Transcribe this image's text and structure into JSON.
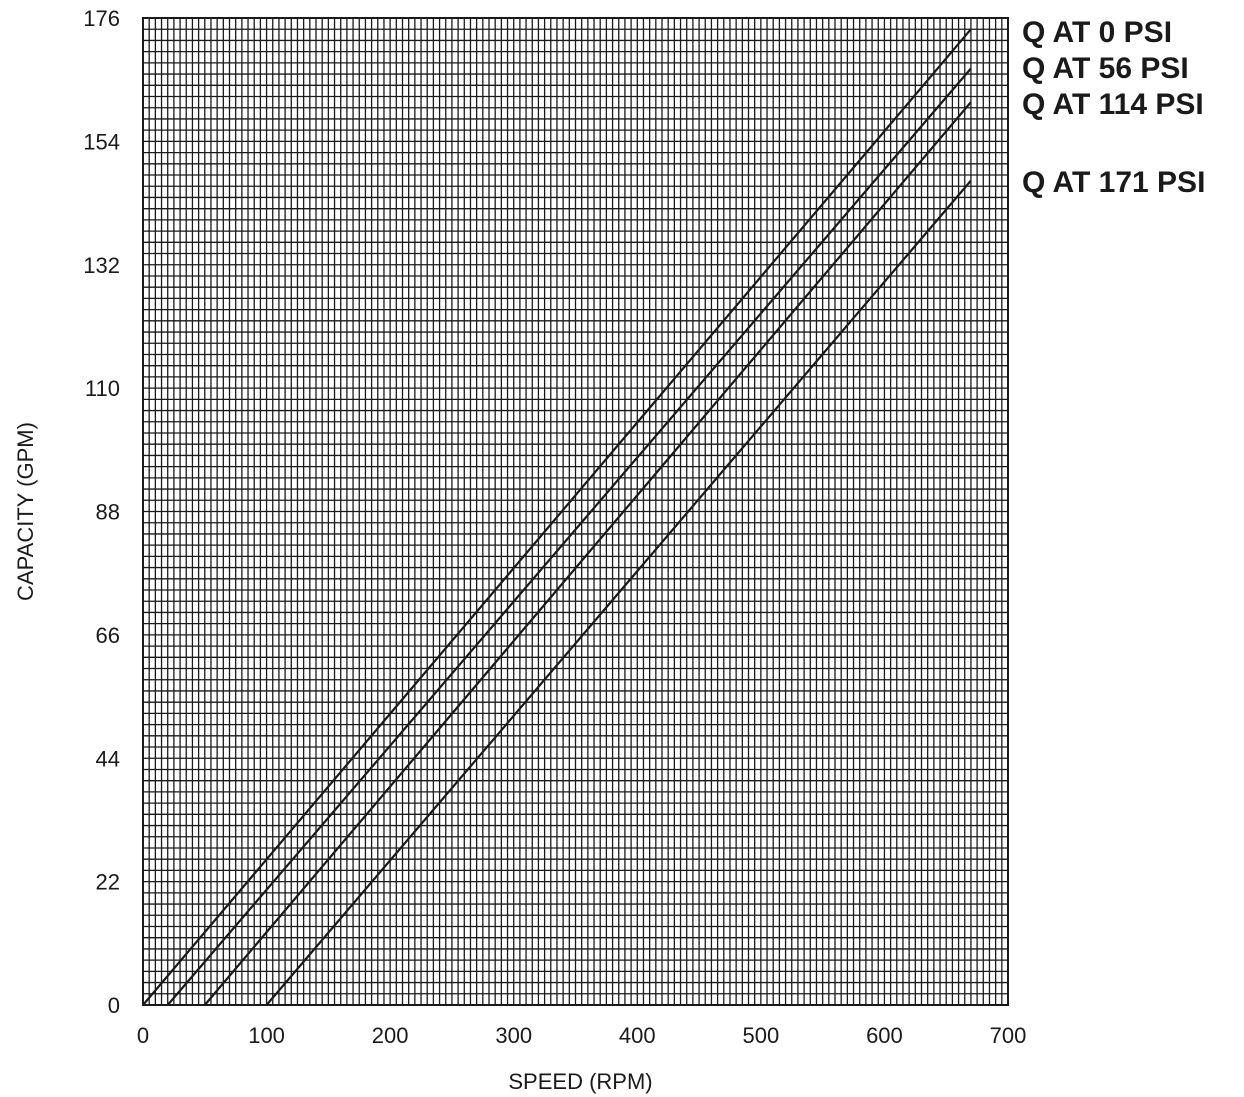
{
  "chart_data": {
    "type": "line",
    "title": "",
    "xlabel": "SPEED (RPM)",
    "ylabel": "CAPACITY  (GPM)",
    "xlim": [
      0,
      700
    ],
    "ylim": [
      0,
      176
    ],
    "xticks": [
      0,
      100,
      200,
      300,
      400,
      500,
      600,
      700
    ],
    "yticks": [
      0,
      22,
      44,
      66,
      88,
      110,
      132,
      154,
      176
    ],
    "grid": true,
    "grid_minor_x_step": 5,
    "grid_minor_y_step": 2,
    "legend": "right",
    "series": [
      {
        "name": "Q AT 0 PSI",
        "x": [
          0,
          670
        ],
        "y": [
          0,
          174
        ]
      },
      {
        "name": "Q AT 56 PSI",
        "x": [
          20,
          670
        ],
        "y": [
          0,
          167
        ]
      },
      {
        "name": "Q AT 114 PSI",
        "x": [
          50,
          670
        ],
        "y": [
          0,
          161
        ]
      },
      {
        "name": "Q AT 171 PSI",
        "x": [
          100,
          670
        ],
        "y": [
          0,
          147
        ]
      }
    ]
  }
}
